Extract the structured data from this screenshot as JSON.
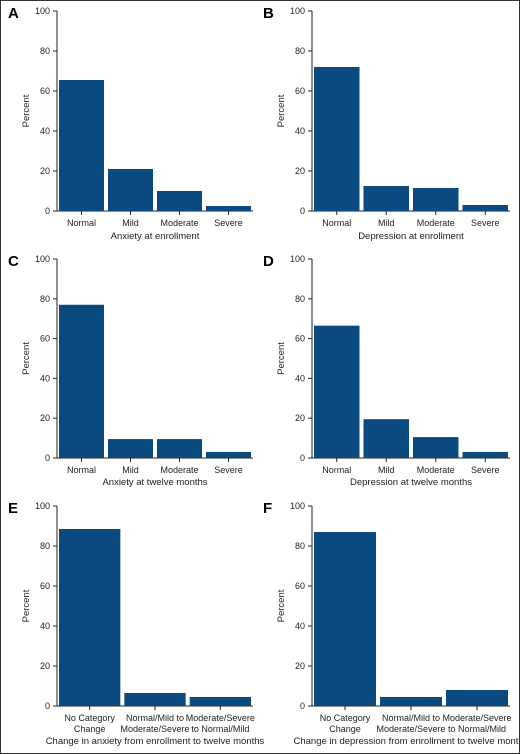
{
  "bar_color": "#0b4a7f",
  "chart_data": [
    {
      "panel": "A",
      "type": "bar",
      "categories": [
        "Normal",
        "Mild",
        "Moderate",
        "Severe"
      ],
      "values": [
        65.5,
        21,
        10,
        2.5
      ],
      "xlabel": "Anxiety at enrollment",
      "ylabel": "Percent",
      "ylim": [
        0,
        100
      ],
      "yticks": [
        0,
        20,
        40,
        60,
        80,
        100
      ],
      "grid": false
    },
    {
      "panel": "B",
      "type": "bar",
      "categories": [
        "Normal",
        "Mild",
        "Moderate",
        "Severe"
      ],
      "values": [
        72,
        12.5,
        11.5,
        3
      ],
      "xlabel": "Depression at enrollment",
      "ylabel": "Percent",
      "ylim": [
        0,
        100
      ],
      "yticks": [
        0,
        20,
        40,
        60,
        80,
        100
      ],
      "grid": false
    },
    {
      "panel": "C",
      "type": "bar",
      "categories": [
        "Normal",
        "Mild",
        "Moderate",
        "Severe"
      ],
      "values": [
        77,
        9.5,
        9.5,
        3
      ],
      "xlabel": "Anxiety at twelve months",
      "ylabel": "Percent",
      "ylim": [
        0,
        100
      ],
      "yticks": [
        0,
        20,
        40,
        60,
        80,
        100
      ],
      "grid": false
    },
    {
      "panel": "D",
      "type": "bar",
      "categories": [
        "Normal",
        "Mild",
        "Moderate",
        "Severe"
      ],
      "values": [
        66.5,
        19.5,
        10.5,
        3
      ],
      "xlabel": "Depression at twelve months",
      "ylabel": "Percent",
      "ylim": [
        0,
        100
      ],
      "yticks": [
        0,
        20,
        40,
        60,
        80,
        100
      ],
      "grid": false
    },
    {
      "panel": "E",
      "type": "bar",
      "categories": [
        [
          "No Category",
          "Change"
        ],
        [
          "Normal/Mild to",
          "Moderate/Severe"
        ],
        [
          "Moderate/Severe",
          "to Normal/Mild"
        ]
      ],
      "values": [
        88.5,
        6.5,
        4.5
      ],
      "xlabel": "Change in anxiety from enrollment to twelve months",
      "ylabel": "Percent",
      "ylim": [
        0,
        100
      ],
      "yticks": [
        0,
        20,
        40,
        60,
        80,
        100
      ],
      "grid": false
    },
    {
      "panel": "F",
      "type": "bar",
      "categories": [
        [
          "No Category",
          "Change"
        ],
        [
          "Normal/Mild to",
          "Moderate/Severe"
        ],
        [
          "Moderate/Severe",
          "to Normal/Mild"
        ]
      ],
      "values": [
        87,
        4.5,
        8
      ],
      "xlabel": "Change in depression from enrollment to twelve months",
      "ylabel": "Percent",
      "ylim": [
        0,
        100
      ],
      "yticks": [
        0,
        20,
        40,
        60,
        80,
        100
      ],
      "grid": false
    }
  ]
}
